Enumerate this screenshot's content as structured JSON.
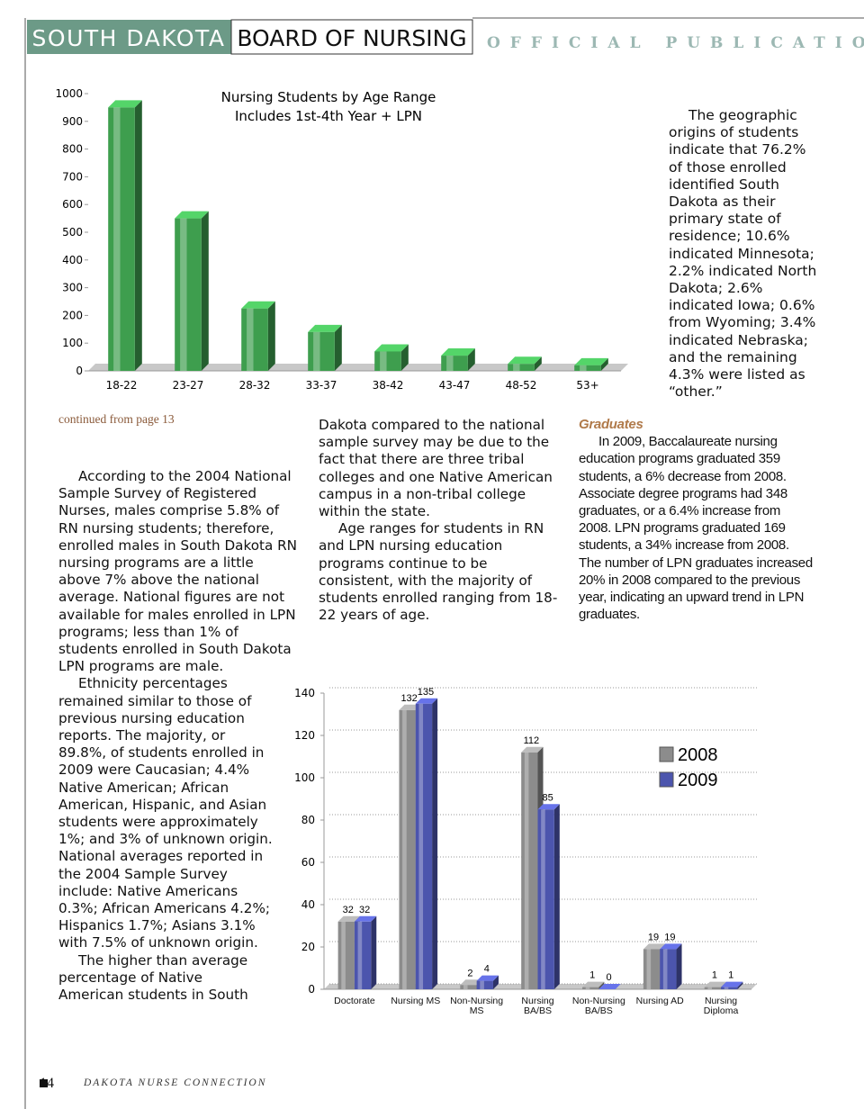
{
  "header": {
    "state": "SOUTH DAKOTA",
    "board": "BOARD OF NURSING",
    "tagline": "OFFICIAL PUBLICATION"
  },
  "chart_data": [
    {
      "type": "bar",
      "title": "Nursing Students by Age Range",
      "subtitle": "Includes 1st-4th Year + LPN",
      "categories": [
        "18-22",
        "23-27",
        "28-32",
        "33-37",
        "38-42",
        "43-47",
        "48-52",
        "53+"
      ],
      "values": [
        950,
        550,
        225,
        140,
        70,
        55,
        25,
        20
      ],
      "color": "#3e9e4e",
      "ylim": [
        0,
        1000
      ],
      "yticks": [
        0,
        100,
        200,
        300,
        400,
        500,
        600,
        700,
        800,
        900,
        1000
      ],
      "grid": false,
      "show_values": false
    },
    {
      "type": "grouped_bar",
      "categories": [
        "Doctorate",
        "Nursing MS",
        "Non-Nursing MS",
        "Nursing BA/BS",
        "Non-Nursing BA/BS",
        "Nursing AD",
        "Nursing Diploma"
      ],
      "series": [
        {
          "name": "2008",
          "color": "#8c8c8c",
          "values": [
            32,
            132,
            2,
            112,
            1,
            19,
            1
          ]
        },
        {
          "name": "2009",
          "color": "#4c55ad",
          "values": [
            32,
            135,
            4,
            85,
            0,
            19,
            1
          ]
        }
      ],
      "ylim": [
        0,
        140
      ],
      "yticks": [
        0,
        20,
        40,
        60,
        80,
        100,
        120,
        140
      ],
      "grid": true,
      "show_values": true,
      "legend": "right"
    }
  ],
  "sidebar": "The geographic origins of students indicate that 76.2% of those enrolled identified South Dakota as their primary state of residence; 10.6% indicated Minnesota; 2.2% indicated North Dakota; 2.6% indicated Iowa; 0.6% from Wyoming; 3.4% indicated Nebraska; and the remaining 4.3% were listed as “other.”",
  "continued": "continued from page 13",
  "column1": [
    "According to the 2004 National Sample Survey of Registered Nurses, males comprise 5.8% of RN nursing students; therefore, enrolled males in South Dakota RN nursing programs are a little above 7% above the national average.  National figures are not available for males enrolled in LPN programs; less than 1% of students enrolled in South Dakota LPN programs are male.",
    "Ethnicity percentages remained similar to those of previous nursing education reports.  The majority, or 89.8%, of students enrolled in 2009 were Caucasian; 4.4% Native American; African American, Hispanic, and Asian students were approximately 1%; and 3% of unknown origin.  National averages reported in the 2004 Sample Survey include: Native Americans 0.3%; African Americans 4.2%; Hispanics 1.7%; Asians 3.1% with 7.5% of unknown origin.",
    "The higher than average percentage of Native American students in South"
  ],
  "column2": [
    "Dakota compared to the national sample survey may be due to the fact that there are three tribal colleges and one Native American campus in a non-tribal college within the state.",
    "Age ranges for students in RN and LPN nursing education programs continue to be consistent, with the majority of students enrolled ranging from 18-22 years of age."
  ],
  "column3": {
    "heading": "Graduates",
    "text": "In 2009, Baccalaureate nursing education programs graduated 359 students, a 6% decrease from 2008. Associate degree programs had 348 graduates, or a 6.4% increase from 2008.  LPN programs graduated 169 students, a 34% increase from 2008.  The number of LPN graduates increased 20% in 2008 compared to the previous year, indicating an upward trend in LPN graduates."
  },
  "footer": {
    "page": "14",
    "publication": "DAKOTA NURSE CONNECTION"
  }
}
